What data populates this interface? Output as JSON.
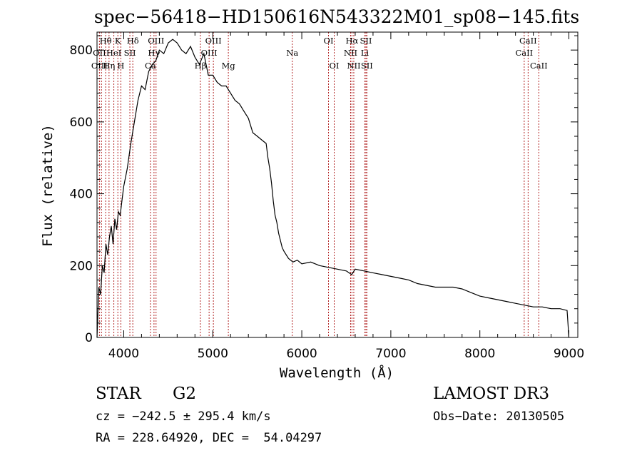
{
  "chart_data": {
    "type": "line",
    "title": "spec−56418−HD150616N543322M01_sp08−145.fits",
    "xlabel": "Wavelength (Å)",
    "ylabel": "Flux (relative)",
    "xlim": [
      3700,
      9100
    ],
    "ylim": [
      0,
      850
    ],
    "x_ticks": [
      4000,
      5000,
      6000,
      7000,
      8000,
      9000
    ],
    "y_ticks": [
      0,
      200,
      400,
      600,
      800
    ],
    "grid": false,
    "series": [
      {
        "name": "spectrum",
        "x": [
          3700,
          3720,
          3740,
          3760,
          3780,
          3800,
          3820,
          3840,
          3860,
          3880,
          3900,
          3920,
          3940,
          3960,
          3980,
          4000,
          4040,
          4080,
          4120,
          4160,
          4200,
          4240,
          4280,
          4320,
          4360,
          4400,
          4450,
          4500,
          4550,
          4600,
          4650,
          4700,
          4750,
          4800,
          4850,
          4900,
          4950,
          5000,
          5050,
          5100,
          5150,
          5200,
          5250,
          5300,
          5350,
          5400,
          5450,
          5500,
          5550,
          5600,
          5620,
          5640,
          5660,
          5680,
          5700,
          5720,
          5740,
          5760,
          5780,
          5800,
          5850,
          5900,
          5950,
          6000,
          6100,
          6200,
          6300,
          6400,
          6500,
          6560,
          6600,
          6700,
          6800,
          6900,
          7000,
          7100,
          7200,
          7300,
          7400,
          7500,
          7600,
          7700,
          7800,
          7900,
          8000,
          8100,
          8200,
          8300,
          8400,
          8500,
          8600,
          8700,
          8800,
          8900,
          8980,
          9000
        ],
        "y": [
          0,
          140,
          120,
          200,
          180,
          260,
          230,
          280,
          310,
          260,
          330,
          300,
          350,
          340,
          380,
          420,
          470,
          540,
          600,
          660,
          700,
          690,
          740,
          760,
          770,
          800,
          790,
          820,
          830,
          820,
          800,
          790,
          810,
          780,
          760,
          790,
          730,
          730,
          710,
          700,
          700,
          680,
          660,
          650,
          630,
          610,
          570,
          560,
          550,
          540,
          500,
          470,
          430,
          380,
          340,
          320,
          290,
          270,
          250,
          240,
          220,
          210,
          215,
          205,
          210,
          200,
          195,
          190,
          185,
          175,
          190,
          185,
          180,
          175,
          170,
          165,
          160,
          150,
          145,
          140,
          140,
          140,
          135,
          125,
          115,
          110,
          105,
          100,
          95,
          90,
          85,
          85,
          80,
          80,
          75,
          0
        ]
      }
    ],
    "annotations": [
      {
        "label": "Hθ",
        "x": 3797,
        "row": 0
      },
      {
        "label": "OII",
        "x": 3727,
        "row": 1
      },
      {
        "label": "OIII",
        "x": 3727,
        "row": 2
      },
      {
        "label": "K",
        "x": 3934,
        "row": 0
      },
      {
        "label": "HeI",
        "x": 3889,
        "row": 1
      },
      {
        "label": "SII",
        "x": 4069,
        "row": 1
      },
      {
        "label": "Hη",
        "x": 3835,
        "row": 2
      },
      {
        "label": "H",
        "x": 3968,
        "row": 2
      },
      {
        "label": "Hδ",
        "x": 4102,
        "row": 0
      },
      {
        "label": "OIII",
        "x": 4363,
        "row": 0
      },
      {
        "label": "Hγ",
        "x": 4340,
        "row": 1
      },
      {
        "label": "Ca",
        "x": 4300,
        "row": 2
      },
      {
        "label": "OIII",
        "x": 5007,
        "row": 0
      },
      {
        "label": "OIII",
        "x": 4959,
        "row": 1
      },
      {
        "label": "Hβ",
        "x": 4861,
        "row": 2
      },
      {
        "label": "Mg",
        "x": 5175,
        "row": 2
      },
      {
        "label": "Na",
        "x": 5893,
        "row": 1
      },
      {
        "label": "OI",
        "x": 6300,
        "row": 0
      },
      {
        "label": "OI",
        "x": 6364,
        "row": 2
      },
      {
        "label": "Hα",
        "x": 6563,
        "row": 0
      },
      {
        "label": "SII",
        "x": 6720,
        "row": 0
      },
      {
        "label": "NII",
        "x": 6548,
        "row": 1
      },
      {
        "label": "Li",
        "x": 6708,
        "row": 1
      },
      {
        "label": "NII",
        "x": 6584,
        "row": 2
      },
      {
        "label": "SII",
        "x": 6731,
        "row": 2
      },
      {
        "label": "CaII",
        "x": 8542,
        "row": 0
      },
      {
        "label": "CaII",
        "x": 8498,
        "row": 1
      },
      {
        "label": "CaII",
        "x": 8662,
        "row": 2
      }
    ],
    "line_positions": [
      3727,
      3750,
      3797,
      3835,
      3889,
      3934,
      3968,
      4069,
      4102,
      4300,
      4340,
      4363,
      4861,
      4959,
      5007,
      5175,
      5893,
      6300,
      6364,
      6548,
      6563,
      6584,
      6708,
      6720,
      6731,
      8498,
      8542,
      8662
    ]
  },
  "info": {
    "object_type": "STAR",
    "subclass": "G2",
    "survey": "LAMOST DR3",
    "cz": "cz = −242.5 ± 295.4 km/s",
    "obs_date": "Obs−Date: 20130505",
    "coords": "RA = 228.64920, DEC =  54.04297"
  },
  "colors": {
    "axis": "#000000",
    "spectrum": "#000000",
    "line_marker": "#b22222",
    "background": "#ffffff"
  }
}
